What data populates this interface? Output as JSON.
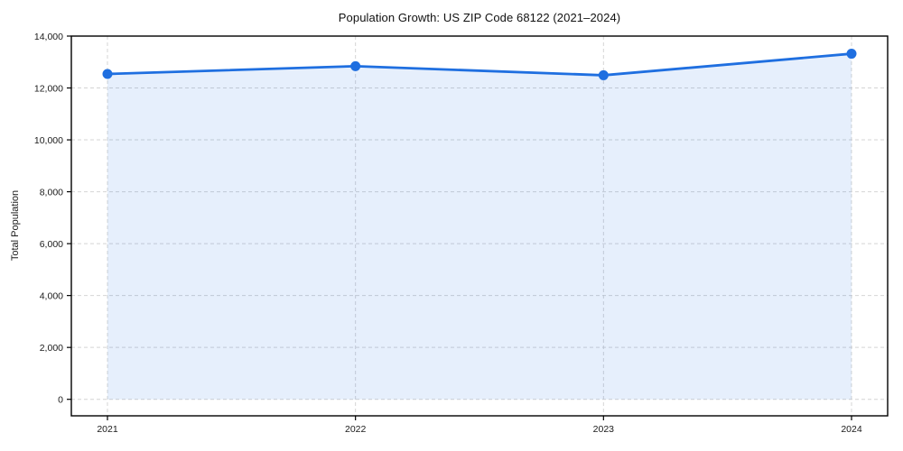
{
  "chart_data": {
    "type": "line",
    "title": "Population Growth: US ZIP Code 68122 (2021–2024)",
    "ylabel": "Total Population",
    "xlabel": "",
    "x": [
      "2021",
      "2022",
      "2023",
      "2024"
    ],
    "series": [
      {
        "name": "Total Population",
        "values": [
          12540,
          12840,
          12490,
          13320
        ]
      }
    ],
    "ylim": [
      0,
      14000
    ],
    "yticks": [
      0,
      2000,
      4000,
      6000,
      8000,
      10000,
      12000,
      14000
    ],
    "ytick_labels": [
      "0",
      "2,000",
      "4,000",
      "6,000",
      "8,000",
      "10,000",
      "12,000",
      "14,000"
    ],
    "grid": true,
    "grid_style": "dashed",
    "legend": "none",
    "area_fill": true,
    "colors": {
      "line": "#1f6fe0",
      "marker": "#1f6fe0",
      "area": "rgba(31,111,224,0.11)",
      "grid": "#cccccc",
      "spine": "#000000",
      "text": "#1a1a1a"
    }
  }
}
